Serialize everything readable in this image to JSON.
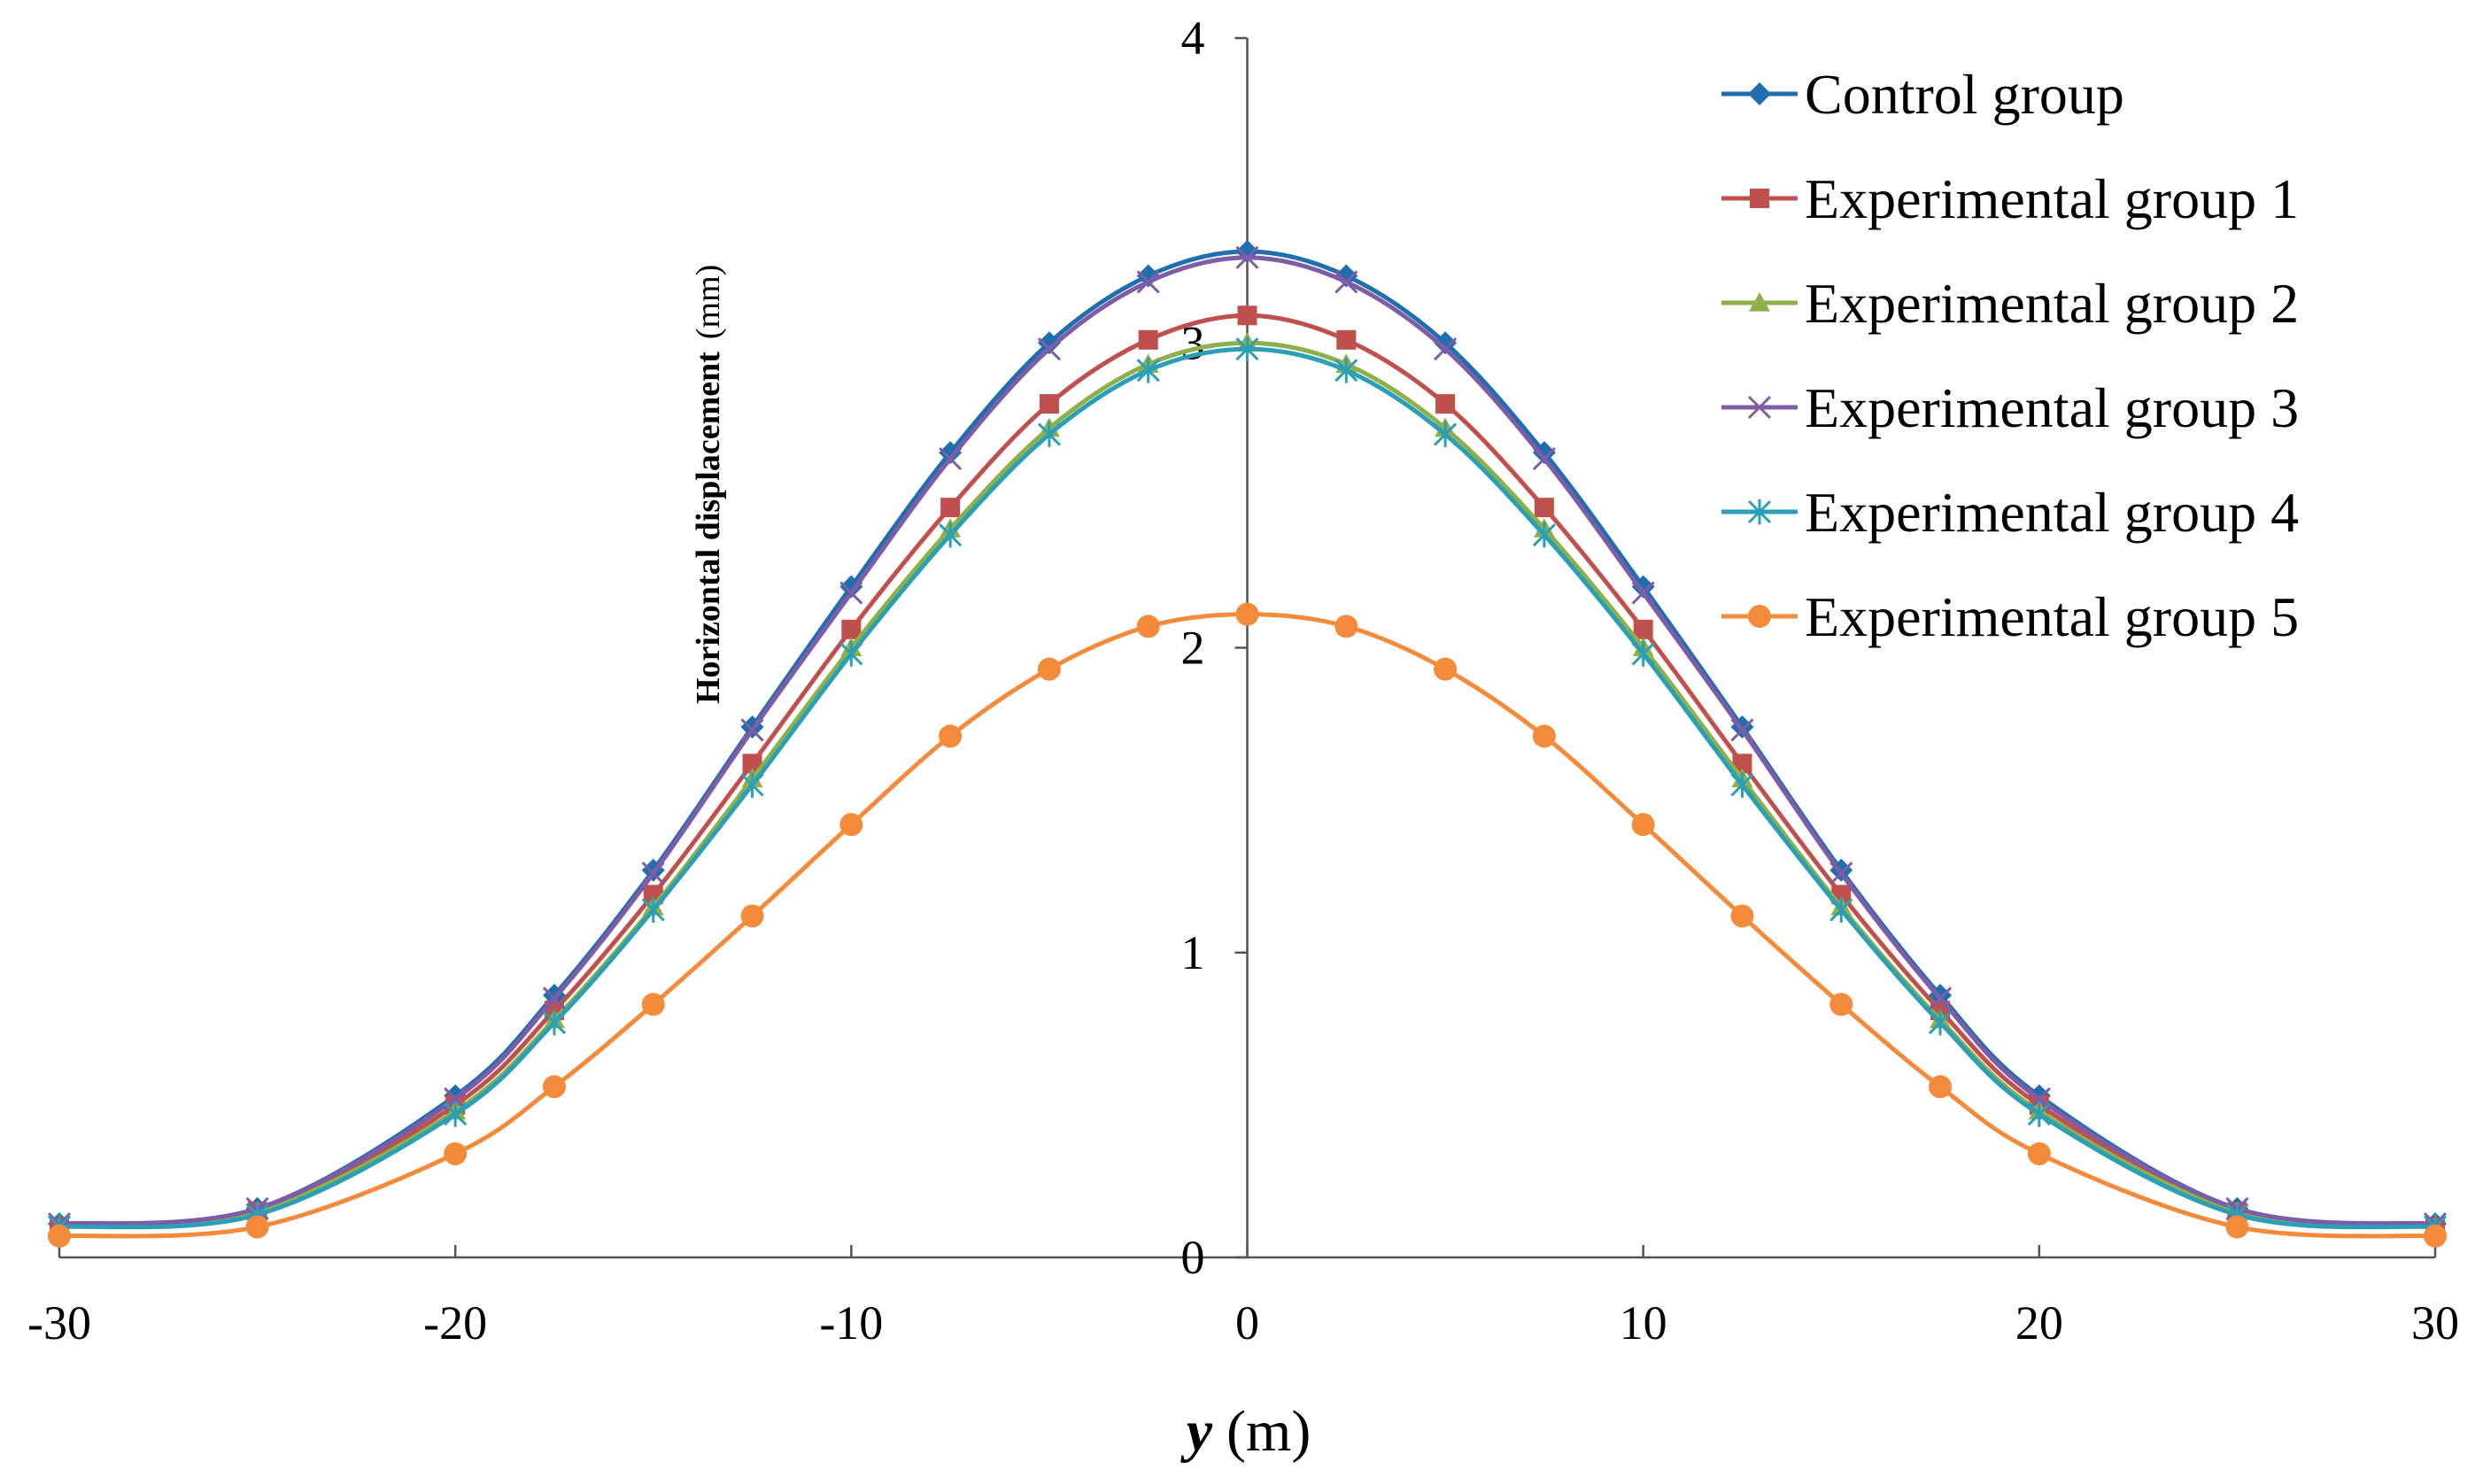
{
  "chart_data": {
    "type": "line",
    "title": "",
    "xlabel_var": "y",
    "xlabel_unit": "(m)",
    "ylabel": "Horizontal displacement",
    "ylabel_unit": "(mm)",
    "xlim": [
      -30,
      30
    ],
    "ylim": [
      0,
      4
    ],
    "x_ticks": [
      -30,
      -20,
      -10,
      0,
      10,
      20,
      30
    ],
    "x_tick_labels": [
      "-30",
      "-20",
      "-10",
      "0",
      "10",
      "20",
      "30"
    ],
    "y_ticks": [
      0,
      1,
      2,
      3,
      4
    ],
    "y_tick_labels": [
      "0",
      "1",
      "2",
      "3",
      "4"
    ],
    "grid": false,
    "legend_position": "top-right",
    "x": [
      -30,
      -25,
      -20,
      -17.5,
      -15,
      -12.5,
      -10,
      -7.5,
      -5,
      -2.5,
      0,
      2.5,
      5,
      7.5,
      10,
      12.5,
      15,
      17.5,
      20,
      25,
      30
    ],
    "series": [
      {
        "name": "Control group",
        "color": "#1f6fae",
        "marker": "diamond",
        "values": [
          0.11,
          0.16,
          0.53,
          0.86,
          1.27,
          1.74,
          2.2,
          2.64,
          3.0,
          3.22,
          3.3,
          3.22,
          3.0,
          2.64,
          2.2,
          1.74,
          1.27,
          0.86,
          0.53,
          0.16,
          0.11
        ]
      },
      {
        "name": "Experimental group 1",
        "color": "#c0504d",
        "marker": "square",
        "values": [
          0.1,
          0.15,
          0.5,
          0.81,
          1.19,
          1.62,
          2.06,
          2.46,
          2.8,
          3.01,
          3.09,
          3.01,
          2.8,
          2.46,
          2.06,
          1.62,
          1.19,
          0.81,
          0.5,
          0.15,
          0.1
        ]
      },
      {
        "name": "Experimental group 2",
        "color": "#8cb04a",
        "marker": "triangle",
        "values": [
          0.1,
          0.15,
          0.48,
          0.78,
          1.15,
          1.57,
          2.0,
          2.39,
          2.72,
          2.93,
          3.0,
          2.93,
          2.72,
          2.39,
          2.0,
          1.57,
          1.15,
          0.78,
          0.48,
          0.15,
          0.1
        ]
      },
      {
        "name": "Experimental group 3",
        "color": "#7e5ca8",
        "marker": "x",
        "values": [
          0.11,
          0.16,
          0.52,
          0.85,
          1.26,
          1.73,
          2.18,
          2.62,
          2.98,
          3.2,
          3.28,
          3.2,
          2.98,
          2.62,
          2.18,
          1.73,
          1.26,
          0.85,
          0.52,
          0.16,
          0.11
        ]
      },
      {
        "name": "Experimental group 4",
        "color": "#2b9fb5",
        "marker": "asterisk",
        "values": [
          0.1,
          0.14,
          0.47,
          0.77,
          1.14,
          1.55,
          1.98,
          2.37,
          2.7,
          2.91,
          2.98,
          2.91,
          2.7,
          2.37,
          1.98,
          1.55,
          1.14,
          0.77,
          0.47,
          0.14,
          0.1
        ]
      },
      {
        "name": "Experimental group 5",
        "color": "#f38b3a",
        "marker": "circle",
        "values": [
          0.07,
          0.1,
          0.34,
          0.56,
          0.83,
          1.12,
          1.42,
          1.71,
          1.93,
          2.07,
          2.11,
          2.07,
          1.93,
          1.71,
          1.42,
          1.12,
          0.83,
          0.56,
          0.34,
          0.1,
          0.07
        ]
      }
    ]
  }
}
